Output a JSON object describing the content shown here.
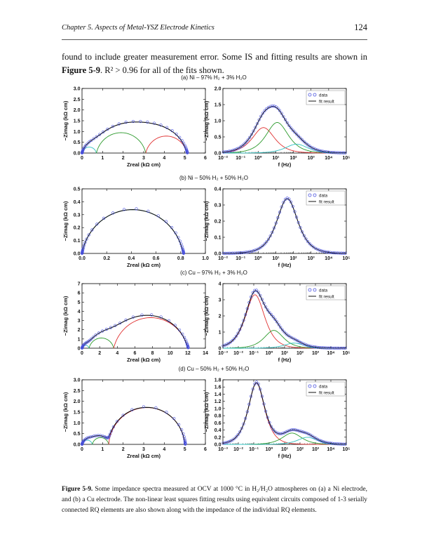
{
  "header": {
    "chapter": "Chapter 5. Aspects of Metal-YSZ Electrode Kinetics",
    "page_number": "124"
  },
  "intro": {
    "line1_text": "found to include greater measurement error. Some IS and fitting results are shown in ",
    "line1_ref": "Figure",
    "line2_ref": "5-9",
    "line2_text": ". R² > 0.96 for all of the fits shown."
  },
  "legend": {
    "data": "data",
    "fit": "fit result"
  },
  "colors": {
    "data": "#4a52e0",
    "fit": "#111111",
    "rq1": "#e03030",
    "rq2": "#2c9a2c",
    "rq3": "#30c0c0"
  },
  "caption": {
    "label": "Figure 5-9.",
    "text": " Some impedance spectra measured at OCV at 1000 °C in H₂/H₂O atmospheres on (a) a Ni electrode, and (b) a Cu electrode. The non-linear least squares fitting results using equivalent circuits composed of 1-3 serially connected RQ elements are also shown along with the impedance of the individual RQ elements."
  },
  "chart_data": [
    {
      "id": "a",
      "type": "scatter",
      "title": "(a) Ni – 97% H₂ + 3% H₂O",
      "nyquist": {
        "xlabel": "Zreal (kΩ cm)",
        "ylabel": "−Zimag (kΩ cm)",
        "xlim": [
          0,
          6
        ],
        "ylim": [
          0,
          3
        ],
        "xticks": [
          "0",
          "1",
          "2",
          "3",
          "4",
          "5",
          "6"
        ],
        "yticks": [
          "0.0",
          "0.5",
          "1.0",
          "1.5",
          "2.0",
          "2.5",
          "3.0"
        ],
        "rq": [
          {
            "r": 0.7,
            "n": 0.85
          },
          {
            "r": 2.4,
            "n": 0.85
          },
          {
            "r": 2.0,
            "n": 0.85
          }
        ]
      },
      "bode": {
        "xlabel": "f (Hz)",
        "ylabel": "−Zimag (kΩ cm)",
        "xlim_log": [
          -2,
          5
        ],
        "ylim": [
          0,
          2.0
        ],
        "xticks": [
          "10⁻²",
          "10⁻¹",
          "10⁰",
          "10¹",
          "10²",
          "10³",
          "10⁴",
          "10⁵"
        ],
        "yticks": [
          "0.0",
          "0.5",
          "1.0",
          "1.5",
          "2.0"
        ],
        "rq": [
          {
            "r": 2.0,
            "fc": 2.0,
            "n": 0.85
          },
          {
            "r": 2.4,
            "fc": 12,
            "n": 0.85
          },
          {
            "r": 0.7,
            "fc": 150,
            "n": 0.85
          }
        ]
      }
    },
    {
      "id": "b",
      "type": "scatter",
      "title": "(b) Ni – 50% H₂ + 50% H₂O",
      "nyquist": {
        "xlabel": "Zreal (kΩ cm)",
        "ylabel": "−Zimag (kΩ cm)",
        "xlim": [
          0,
          1.0
        ],
        "ylim": [
          0,
          0.5
        ],
        "xticks": [
          "0.0",
          "0.2",
          "0.4",
          "0.6",
          "0.8",
          "1.0"
        ],
        "yticks": [
          "0.0",
          "0.1",
          "0.2",
          "0.3",
          "0.4",
          "0.5"
        ],
        "rq": [
          {
            "r": 0.82,
            "n": 0.88
          }
        ]
      },
      "bode": {
        "xlabel": "f (Hz)",
        "ylabel": "−Zimag (kΩ cm)",
        "xlim_log": [
          -2,
          5
        ],
        "ylim": [
          0,
          0.4
        ],
        "xticks": [
          "10⁻²",
          "10⁻¹",
          "10⁰",
          "10¹",
          "10²",
          "10³",
          "10⁴",
          "10⁵"
        ],
        "yticks": [
          "0.0",
          "0.1",
          "0.2",
          "0.3",
          "0.4"
        ],
        "rq": [
          {
            "r": 0.82,
            "fc": 45,
            "n": 0.88
          }
        ]
      }
    },
    {
      "id": "c",
      "type": "scatter",
      "title": "(c) Cu – 97% H₂ + 3% H₂O",
      "nyquist": {
        "xlabel": "Zreal (kΩ cm)",
        "ylabel": "−Zimag (kΩ cm)",
        "xlim": [
          0,
          14
        ],
        "ylim": [
          0,
          7
        ],
        "xticks": [
          "0",
          "2",
          "4",
          "6",
          "8",
          "10",
          "12",
          "14"
        ],
        "yticks": [
          "0",
          "1",
          "2",
          "3",
          "4",
          "5",
          "6",
          "7"
        ],
        "rq": [
          {
            "r": 0.8,
            "n": 0.85
          },
          {
            "r": 2.8,
            "n": 0.85
          },
          {
            "r": 8.4,
            "n": 0.85
          }
        ]
      },
      "bode": {
        "xlabel": "f (Hz)",
        "ylabel": "−Zimag (kΩ cm)",
        "xlim_log": [
          -3,
          5
        ],
        "ylim": [
          0,
          4
        ],
        "xticks": [
          "10⁻³",
          "10⁻²",
          "10⁻¹",
          "10⁰",
          "10¹",
          "10²",
          "10³",
          "10⁴",
          "10⁵"
        ],
        "yticks": [
          "0",
          "1",
          "2",
          "3",
          "4"
        ],
        "rq": [
          {
            "r": 8.4,
            "fc": 0.12,
            "n": 0.85
          },
          {
            "r": 2.8,
            "fc": 2.0,
            "n": 0.85
          },
          {
            "r": 0.8,
            "fc": 40,
            "n": 0.85
          }
        ]
      }
    },
    {
      "id": "d",
      "type": "scatter",
      "title": "(d) Cu – 50% H₂ + 50% H₂O",
      "nyquist": {
        "xlabel": "Zreal (kΩ cm)",
        "ylabel": "−Zimag (kΩ cm)",
        "xlim": [
          0,
          6
        ],
        "ylim": [
          0,
          3
        ],
        "xticks": [
          "0",
          "1",
          "2",
          "3",
          "4",
          "5",
          "6"
        ],
        "yticks": [
          "0.0",
          "0.5",
          "1.0",
          "1.5",
          "2.0",
          "2.5",
          "3.0"
        ],
        "rq": [
          {
            "r": 0.5,
            "n": 0.85
          },
          {
            "r": 0.8,
            "n": 0.85
          },
          {
            "r": 3.7,
            "n": 0.95
          }
        ]
      },
      "bode": {
        "xlabel": "f (Hz)",
        "ylabel": "−Zimag (kΩ cm)",
        "xlim_log": [
          -3,
          5
        ],
        "ylim": [
          0,
          1.8
        ],
        "xticks": [
          "10⁻³",
          "10⁻²",
          "10⁻¹",
          "10⁰",
          "10¹",
          "10²",
          "10³",
          "10⁴",
          "10⁵"
        ],
        "yticks": [
          "0.0",
          "0.2",
          "0.4",
          "0.6",
          "0.8",
          "1.0",
          "1.2",
          "1.4",
          "1.6",
          "1.8"
        ],
        "rq": [
          {
            "r": 3.7,
            "fc": 0.15,
            "n": 0.95
          },
          {
            "r": 0.8,
            "fc": 30,
            "n": 0.85
          },
          {
            "r": 0.5,
            "fc": 300,
            "n": 0.85
          }
        ]
      }
    }
  ]
}
